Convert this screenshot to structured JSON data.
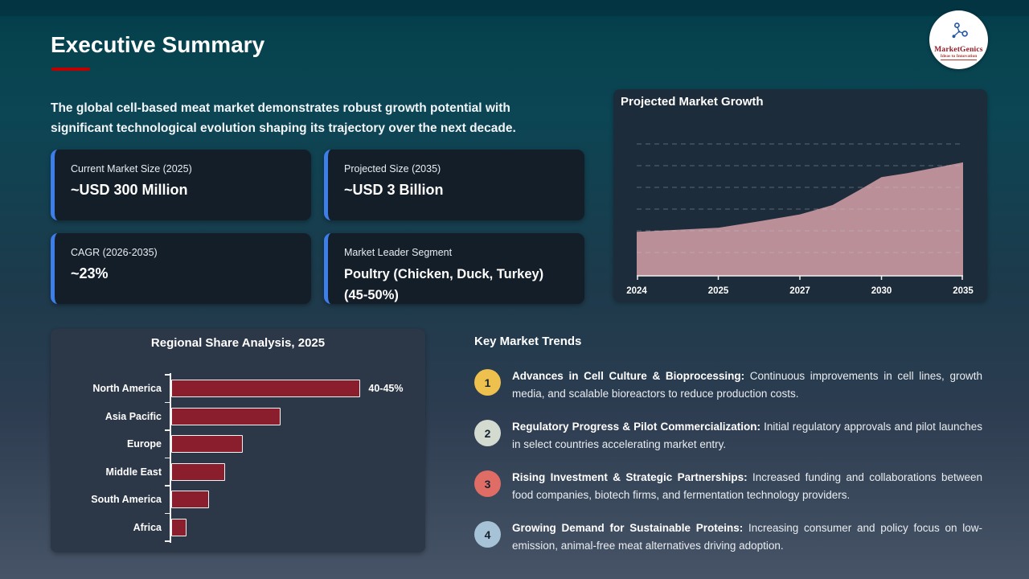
{
  "header": {
    "title": "Executive Summary"
  },
  "logo": {
    "name": "MarketGenics",
    "tagline": "Ideas to Innovation",
    "icon": "molecule-icon"
  },
  "intro": "The global cell-based meat market demonstrates robust growth potential with significant technological evolution shaping its trajectory over the next decade.",
  "colors": {
    "accent_blue": "#3d7ee8",
    "underline_red": "#c00000",
    "bar_red": "#8b1e2d",
    "area_fill": "#bb8f98",
    "gridline": "rgba(190,205,215,0.38)"
  },
  "stats": [
    {
      "label": "Current Market Size (2025)",
      "value": "~USD 300 Million"
    },
    {
      "label": "Projected Size (2035)",
      "value": "~USD 3 Billion"
    },
    {
      "label": "CAGR (2026-2035)",
      "value": "~23%"
    },
    {
      "label": "Market Leader Segment",
      "value": "Poultry (Chicken, Duck, Turkey) (45-50%)"
    }
  ],
  "trends": {
    "heading": "Key Market Trends",
    "items": [
      {
        "num": "1",
        "color": "#eec04d",
        "title": "Advances in Cell Culture & Bioprocessing:",
        "body": "Continuous improvements in cell lines, growth media, and scalable bioreactors to reduce production costs."
      },
      {
        "num": "2",
        "color": "#d3dbd1",
        "title": "Regulatory Progress & Pilot Commercialization:",
        "body": "Initial regulatory approvals and pilot launches in select countries accelerating market entry."
      },
      {
        "num": "3",
        "color": "#e06d65",
        "title": "Rising Investment & Strategic Partnerships:",
        "body": "Increased funding and collaborations between food companies, biotech firms, and fermentation technology providers."
      },
      {
        "num": "4",
        "color": "#a6c2d7",
        "title": "Growing Demand for Sustainable Proteins:",
        "body": "Increasing consumer and policy focus on low-emission, animal-free meat alternatives driving adoption."
      }
    ]
  },
  "chart_data": [
    {
      "type": "area",
      "title": "Projected Market Growth",
      "x_ticks": [
        "2024",
        "2025",
        "2027",
        "2030",
        "2035"
      ],
      "values_relative": [
        0.33,
        0.36,
        0.46,
        0.74,
        0.85
      ],
      "shape_points": [
        [
          0,
          0.33
        ],
        [
          0.25,
          0.36
        ],
        [
          0.38,
          0.41
        ],
        [
          0.5,
          0.46
        ],
        [
          0.6,
          0.53
        ],
        [
          0.68,
          0.64
        ],
        [
          0.75,
          0.74
        ],
        [
          0.83,
          0.77
        ],
        [
          1,
          0.85
        ]
      ],
      "fill": "#bb8f98",
      "gridlines": 6,
      "grid_on": true,
      "legend": "none",
      "yaxis": "unlabeled"
    },
    {
      "type": "bar",
      "title": "Regional Share Analysis, 2025",
      "orientation": "horizontal",
      "categories": [
        "North America",
        "Asia Pacific",
        "Europe",
        "Middle East",
        "South America",
        "Africa"
      ],
      "values": [
        42.5,
        24.5,
        16,
        12,
        8.5,
        3.5
      ],
      "xlim": [
        0,
        50
      ],
      "data_labels": [
        "40-45%",
        "",
        "",
        "",
        "",
        ""
      ],
      "bar_color": "#8b1e2d",
      "legend": "none"
    }
  ]
}
